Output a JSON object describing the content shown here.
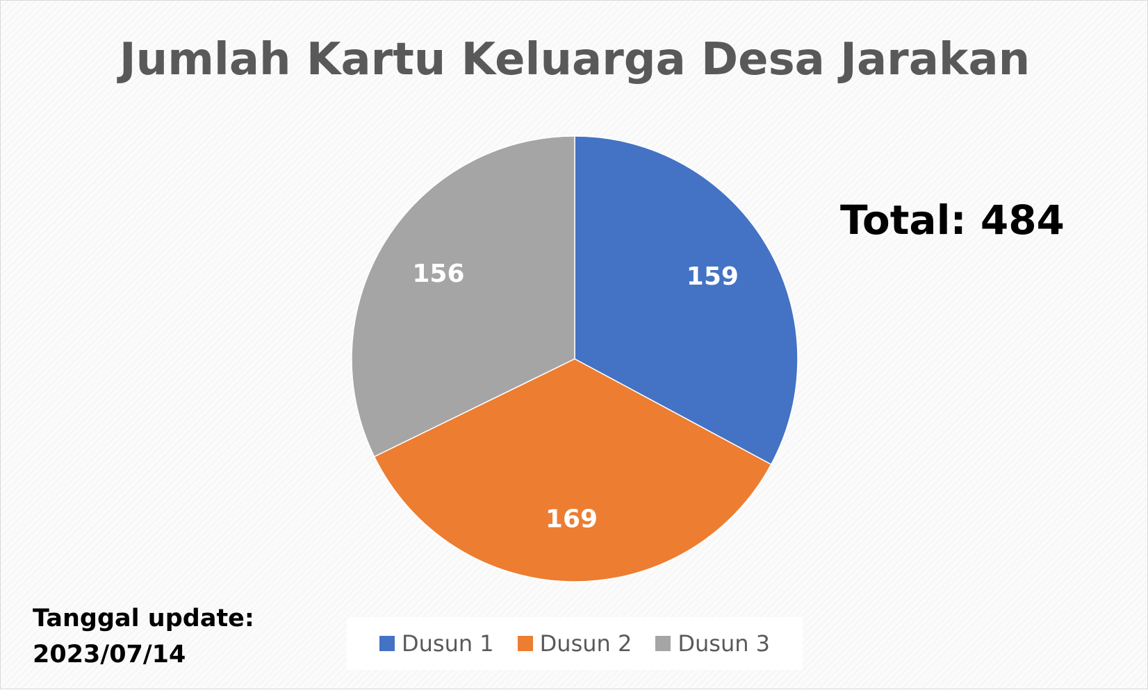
{
  "chart_data": {
    "type": "pie",
    "title": "Jumlah Kartu Keluarga Desa Jarakan",
    "categories": [
      "Dusun 1",
      "Dusun 2",
      "Dusun 3"
    ],
    "values": [
      159,
      169,
      156
    ],
    "colors": [
      "#4472c4",
      "#ed7d31",
      "#a5a5a5"
    ],
    "data_labels": [
      "159",
      "169",
      "156"
    ],
    "start_angle_deg": 0,
    "direction": "clockwise",
    "legend_position": "bottom"
  },
  "annotations": {
    "total": "Total: 484",
    "update_label": "Tanggal update:",
    "update_date": "2023/07/14"
  }
}
